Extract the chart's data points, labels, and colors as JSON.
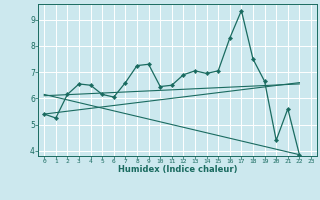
{
  "title": "",
  "xlabel": "Humidex (Indice chaleur)",
  "bg_color": "#cce8ee",
  "grid_color": "#ffffff",
  "line_color": "#1a6b60",
  "xlim": [
    -0.5,
    23.5
  ],
  "ylim": [
    3.8,
    9.6
  ],
  "yticks": [
    4,
    5,
    6,
    7,
    8,
    9
  ],
  "xticks": [
    0,
    1,
    2,
    3,
    4,
    5,
    6,
    7,
    8,
    9,
    10,
    11,
    12,
    13,
    14,
    15,
    16,
    17,
    18,
    19,
    20,
    21,
    22,
    23
  ],
  "series_main": {
    "x": [
      0,
      1,
      2,
      3,
      4,
      5,
      6,
      7,
      8,
      9,
      10,
      11,
      12,
      13,
      14,
      15,
      16,
      17,
      18,
      19,
      20,
      21,
      22
    ],
    "y": [
      5.4,
      5.25,
      6.15,
      6.55,
      6.5,
      6.15,
      6.05,
      6.6,
      7.25,
      7.3,
      6.45,
      6.5,
      6.9,
      7.05,
      6.95,
      7.05,
      8.3,
      9.35,
      7.5,
      6.65,
      4.4,
      5.6,
      3.85
    ]
  },
  "series_flat1": {
    "x": [
      0,
      22
    ],
    "y": [
      6.1,
      6.55
    ]
  },
  "series_flat2": {
    "x": [
      0,
      22
    ],
    "y": [
      6.15,
      3.85
    ]
  },
  "series_flat3": {
    "x": [
      0,
      22
    ],
    "y": [
      5.4,
      6.6
    ]
  }
}
